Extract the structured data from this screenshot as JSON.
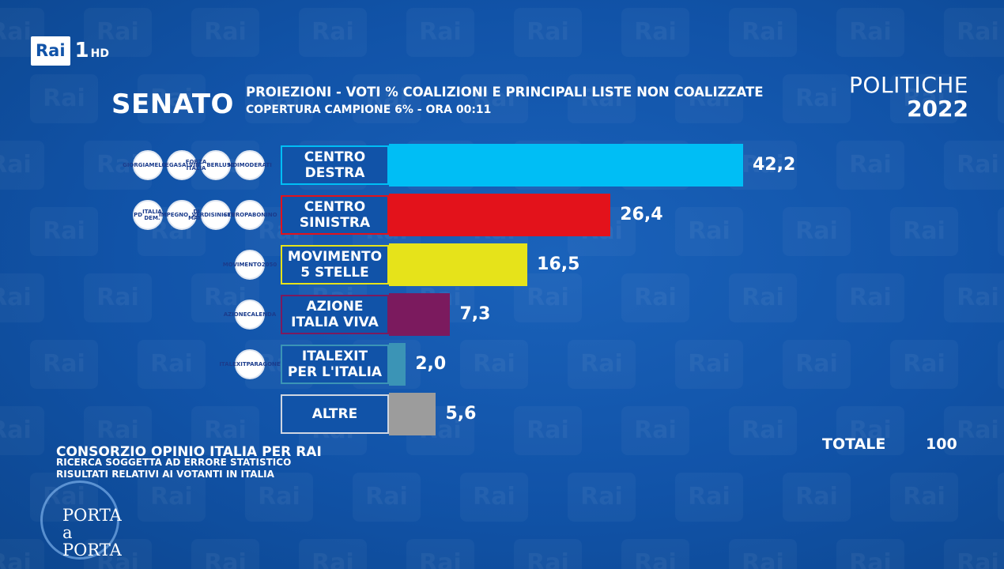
{
  "channel": {
    "rai": "Rai",
    "number": "1",
    "hd": "HD"
  },
  "header": {
    "chamber": "SENATO",
    "title": "PROIEZIONI - VOTI % COALIZIONI E PRINCIPALI LISTE NON COALIZZATE",
    "subtitle": "COPERTURA CAMPIONE 6% - ORA 00:11",
    "election_line1": "POLITICHE",
    "election_line2": "2022"
  },
  "chart_data": {
    "type": "bar",
    "orientation": "horizontal",
    "categories": [
      "CENTRO DESTRA",
      "CENTRO SINISTRA",
      "MOVIMENTO 5 STELLE",
      "AZIONE ITALIA VIVA",
      "ITALEXIT PER L'ITALIA",
      "ALTRE"
    ],
    "labels": [
      [
        "CENTRO",
        "DESTRA"
      ],
      [
        "CENTRO",
        "SINISTRA"
      ],
      [
        "MOVIMENTO",
        "5 STELLE"
      ],
      [
        "AZIONE",
        "ITALIA VIVA"
      ],
      [
        "ITALEXIT",
        "PER L'ITALIA"
      ],
      [
        "ALTRE"
      ]
    ],
    "values": [
      42.2,
      26.4,
      16.5,
      7.3,
      2.0,
      5.6
    ],
    "value_labels": [
      "42,2",
      "26,4",
      "16,5",
      "7,3",
      "2,0",
      "5,6"
    ],
    "colors": [
      "#00bef5",
      "#e3121b",
      "#e6e31a",
      "#7b1a5e",
      "#3b94b6",
      "#9c9c9c"
    ],
    "icons": [
      [
        [
          "GIORGIA",
          "MELONI"
        ],
        [
          "LEGA",
          "SALVINI"
        ],
        [
          "FORZA ITALIA",
          "BERLUSCONI"
        ],
        [
          "NOI",
          "MODERATI"
        ]
      ],
      [
        [
          "PD",
          "ITALIA DEM."
        ],
        [
          "IMPEGNO",
          "DI MAIO"
        ],
        [
          "VERDI",
          "SINISTRA"
        ],
        [
          "+EUROPA",
          "BONINO"
        ]
      ],
      [
        [
          "MOVIMENTO",
          "2050"
        ]
      ],
      [
        [
          "AZIONE",
          "CALENDA"
        ]
      ],
      [
        [
          "ITALEXIT",
          "PARAGONE"
        ]
      ],
      []
    ]
  },
  "totals": {
    "label": "TOTALE",
    "value": "100"
  },
  "source": {
    "line1": "CONSORZIO OPINIO ITALIA PER RAI",
    "line2": "RICERCA SOGGETTA AD ERRORE STATISTICO",
    "line3": "RISULTATI RELATIVI AI VOTANTI IN ITALIA"
  },
  "program_logo": {
    "line1": "PORTA",
    "line2": "a PORTA"
  }
}
